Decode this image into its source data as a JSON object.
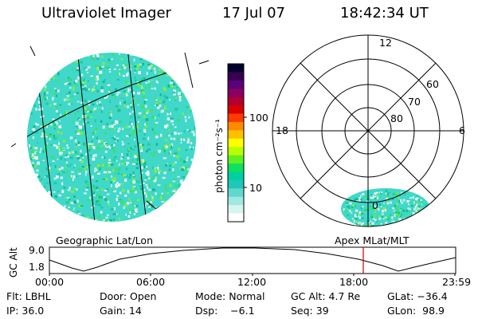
{
  "header": {
    "instrument": "Ultraviolet Imager",
    "date": "17 Jul 07",
    "time": "18:42:34 UT"
  },
  "colorbar": {
    "unit_label": "photon cm⁻²s⁻¹",
    "ticks": [
      "100",
      "10"
    ],
    "colors_top_to_bottom": [
      "#000030",
      "#3a0050",
      "#5a007a",
      "#8a0060",
      "#b00030",
      "#d80000",
      "#ff3a00",
      "#ff8a00",
      "#ffc000",
      "#ffff00",
      "#b8ff00",
      "#60f020",
      "#10e060",
      "#00d0a0",
      "#20c8b8",
      "#60d8d0",
      "#a0e8e0",
      "#d8f4f0",
      "#ffffff"
    ]
  },
  "geographic_panel": {
    "label": "Geographic Lat/Lon",
    "disk_color": "#40d8c8"
  },
  "polar_panel": {
    "label": "Apex MLat/MLT",
    "mlt_labels": {
      "top": "12",
      "left": "18",
      "right": "6",
      "bottom": "0"
    },
    "lat_labels": [
      "60",
      "70",
      "80"
    ]
  },
  "timeline": {
    "ylabel": "GC Alt",
    "ymax": "9.0",
    "ymin": "1.8",
    "xticks": [
      "00:00",
      "06:00",
      "12:00",
      "18:00",
      "23:59"
    ],
    "marker_color": "#c00000"
  },
  "info": {
    "row1": [
      "Flt: LBHL",
      "Door: Open",
      "Mode: Normal",
      "GC Alt: 4.7 Re",
      "GLat: −36.4"
    ],
    "row2": [
      "IP: 36.0",
      "Gain: 14",
      "Dsp:    −6.1",
      "Seq: 39",
      "GLon:  98.9"
    ]
  }
}
